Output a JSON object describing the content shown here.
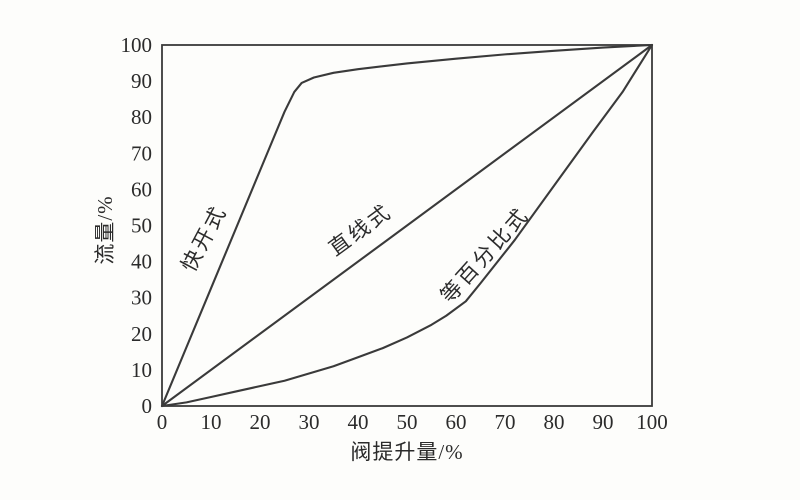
{
  "page": {
    "background": "#fdfdfb",
    "ink_color": "#3a3a3a",
    "text_color": "#2b2b2b"
  },
  "chart_data": {
    "type": "line",
    "title": "",
    "xlabel": "阀提升量/%",
    "ylabel": "流量/%",
    "xlim": [
      0,
      100
    ],
    "ylim": [
      0,
      100
    ],
    "xticks": [
      0,
      10,
      20,
      30,
      40,
      50,
      60,
      70,
      80,
      90,
      100
    ],
    "yticks": [
      0,
      10,
      20,
      30,
      40,
      50,
      60,
      70,
      80,
      90,
      100
    ],
    "grid": false,
    "frame": true,
    "legend_position": "none",
    "line_color": "#3a3a3a",
    "series": [
      {
        "name": "快开式",
        "points": [
          [
            0,
            0
          ],
          [
            5,
            16.3
          ],
          [
            10,
            32.6
          ],
          [
            15,
            48.9
          ],
          [
            20,
            65.2
          ],
          [
            25,
            81.5
          ],
          [
            27,
            87
          ],
          [
            28.5,
            89.5
          ],
          [
            31,
            91
          ],
          [
            35,
            92.3
          ],
          [
            40,
            93.3
          ],
          [
            50,
            94.9
          ],
          [
            60,
            96.2
          ],
          [
            70,
            97.4
          ],
          [
            80,
            98.4
          ],
          [
            90,
            99.3
          ],
          [
            100,
            100
          ]
        ],
        "label": "快开式",
        "label_pos": [
          8.6,
          46.5
        ],
        "label_rotation": -62
      },
      {
        "name": "直线式",
        "points": [
          [
            0,
            0
          ],
          [
            100,
            100
          ]
        ],
        "label": "直线式",
        "label_pos": [
          40.5,
          48.8
        ],
        "label_rotation": -36
      },
      {
        "name": "等百分比式",
        "points": [
          [
            0,
            0
          ],
          [
            5,
            1
          ],
          [
            10,
            2.5
          ],
          [
            15,
            4
          ],
          [
            20,
            5.5
          ],
          [
            25,
            7
          ],
          [
            30,
            9
          ],
          [
            35,
            11
          ],
          [
            40,
            13.5
          ],
          [
            45,
            16
          ],
          [
            50,
            19
          ],
          [
            55,
            22.5
          ],
          [
            58,
            25
          ],
          [
            62,
            29
          ],
          [
            65,
            34
          ],
          [
            72,
            46
          ],
          [
            80,
            61
          ],
          [
            88,
            76
          ],
          [
            94,
            87
          ],
          [
            100,
            100
          ]
        ],
        "label": "等百分比式",
        "label_pos": [
          65.9,
          41.8
        ],
        "label_rotation": -48
      }
    ]
  }
}
